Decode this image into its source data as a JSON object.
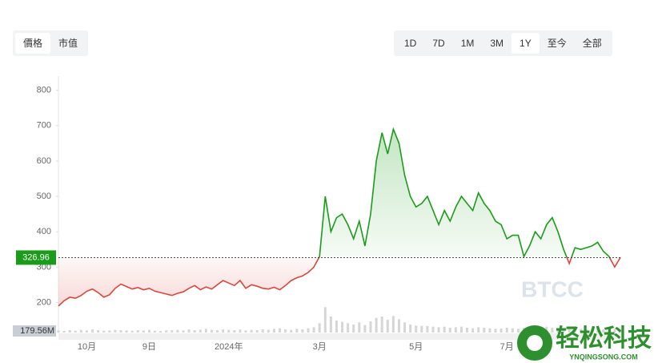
{
  "tabs_left": [
    "價格",
    "市值"
  ],
  "tabs_left_active": 0,
  "tabs_right": [
    "1D",
    "7D",
    "1M",
    "3M",
    "1Y",
    "至今",
    "全部"
  ],
  "tabs_right_active": 4,
  "watermark": "BTCC",
  "site_watermark": {
    "title": "轻松科技",
    "url": "YNQINGSONG.COM"
  },
  "chart_data": {
    "type": "line",
    "categories": [
      null,
      null,
      null,
      null,
      null,
      "10月",
      null,
      null,
      null,
      null,
      null,
      null,
      null,
      null,
      null,
      null,
      "9日",
      null,
      null,
      null,
      null,
      null,
      null,
      null,
      null,
      null,
      null,
      null,
      null,
      null,
      "2024年",
      null,
      null,
      null,
      null,
      null,
      null,
      null,
      null,
      null,
      null,
      null,
      null,
      null,
      null,
      null,
      "3月",
      null,
      null,
      null,
      null,
      null,
      null,
      null,
      null,
      null,
      null,
      null,
      null,
      null,
      null,
      null,
      null,
      "5月",
      null,
      null,
      null,
      null,
      null,
      null,
      null,
      null,
      null,
      null,
      null,
      null,
      null,
      null,
      null,
      "7月",
      null,
      null,
      null,
      null,
      null,
      null,
      null,
      null,
      null,
      null,
      null,
      null,
      null,
      null,
      null,
      null,
      null,
      null,
      null,
      null
    ],
    "values": [
      190,
      205,
      215,
      212,
      220,
      232,
      238,
      228,
      215,
      222,
      240,
      252,
      245,
      238,
      242,
      236,
      240,
      232,
      228,
      224,
      220,
      226,
      230,
      240,
      248,
      236,
      244,
      238,
      250,
      262,
      255,
      248,
      262,
      240,
      250,
      246,
      240,
      238,
      243,
      236,
      248,
      262,
      270,
      275,
      285,
      300,
      330,
      500,
      400,
      440,
      450,
      420,
      380,
      430,
      360,
      450,
      600,
      680,
      620,
      690,
      650,
      560,
      500,
      470,
      480,
      500,
      460,
      420,
      460,
      430,
      470,
      500,
      480,
      460,
      510,
      480,
      460,
      430,
      420,
      380,
      390,
      390,
      330,
      360,
      400,
      380,
      420,
      440,
      400,
      350,
      310,
      355,
      350,
      355,
      360,
      370,
      345,
      330,
      300,
      327
    ],
    "volume": [
      8,
      6,
      9,
      7,
      10,
      8,
      12,
      9,
      7,
      8,
      10,
      9,
      8,
      7,
      9,
      8,
      10,
      7,
      6,
      8,
      9,
      10,
      8,
      12,
      9,
      11,
      14,
      10,
      9,
      12,
      10,
      9,
      11,
      8,
      10,
      9,
      12,
      10,
      14,
      16,
      12,
      10,
      14,
      12,
      16,
      20,
      35,
      95,
      60,
      45,
      40,
      35,
      30,
      38,
      28,
      42,
      55,
      60,
      48,
      62,
      50,
      38,
      30,
      26,
      25,
      24,
      22,
      20,
      22,
      18,
      20,
      22,
      18,
      16,
      20,
      18,
      16,
      14,
      15,
      18,
      16,
      14,
      18,
      16,
      15,
      20,
      22,
      18,
      16,
      14,
      18,
      16,
      14,
      12,
      14,
      16,
      12,
      10,
      14,
      12
    ],
    "volume_ylim": [
      0,
      180
    ],
    "volume_max_label": "179.56M",
    "reference_line": {
      "value": 326.96
    },
    "ylim": [
      115,
      840
    ],
    "yticks": [
      200,
      300,
      400,
      500,
      600,
      700,
      800
    ],
    "up_color": "#1a9c1a",
    "down_color": "#d9473d"
  }
}
